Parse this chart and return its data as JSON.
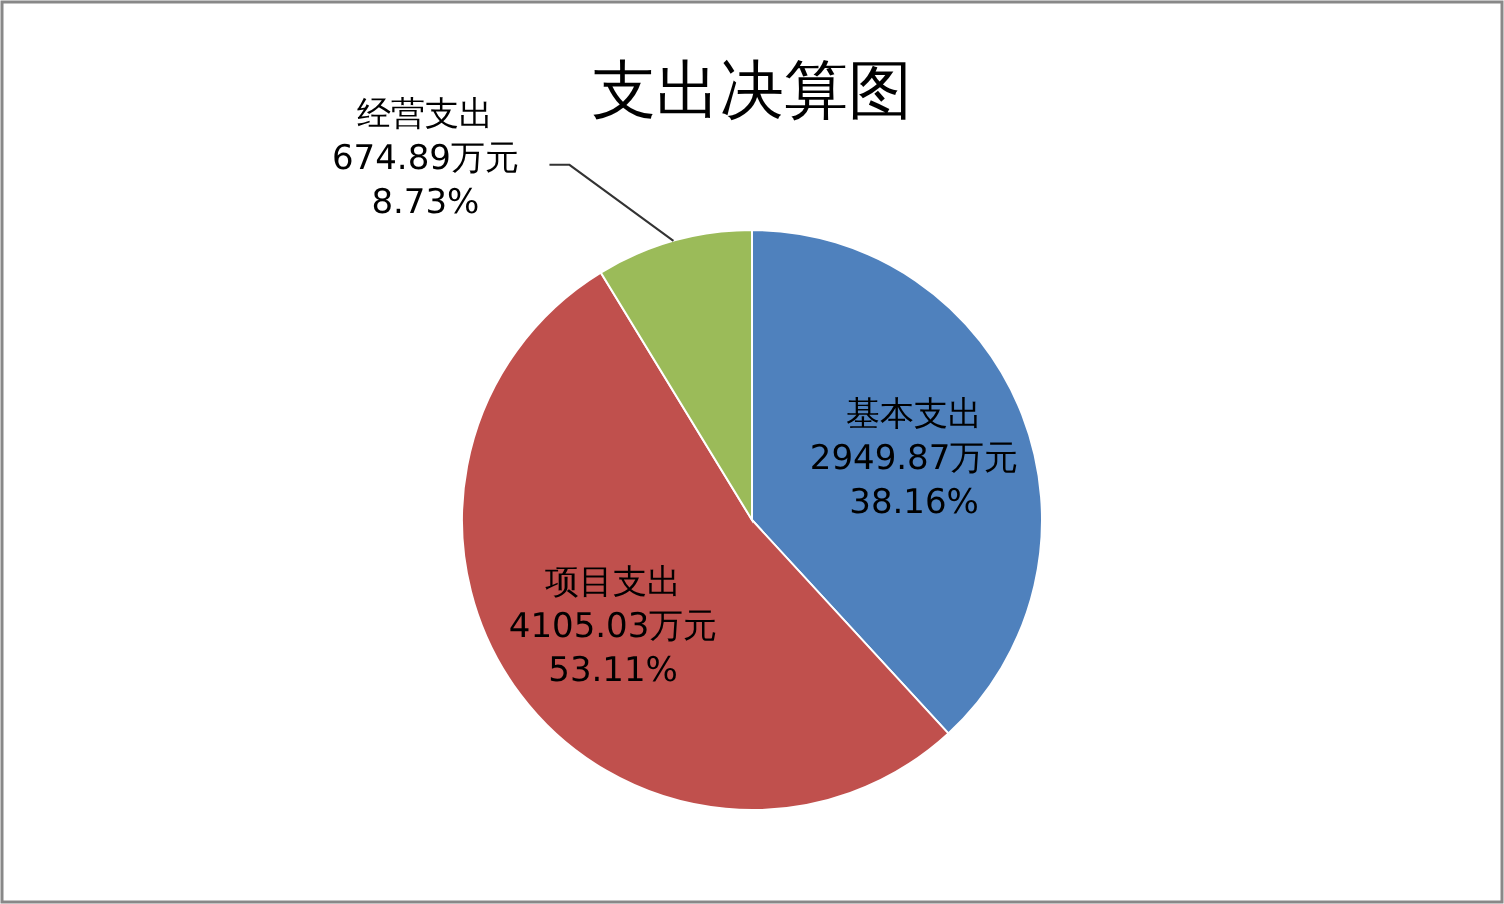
{
  "chart_data": {
    "type": "pie",
    "title": "支出决算图",
    "categories": [
      "基本支出",
      "项目支出",
      "经营支出"
    ],
    "values": [
      2949.87,
      4105.03,
      674.89
    ],
    "colors": [
      "#4f81bd",
      "#c0504d",
      "#9bbb59"
    ],
    "value_labels": [
      "2949.87万元\n38.16%",
      "4105.03万元\n53.11%",
      "674.89万元\n8.73%"
    ]
  }
}
